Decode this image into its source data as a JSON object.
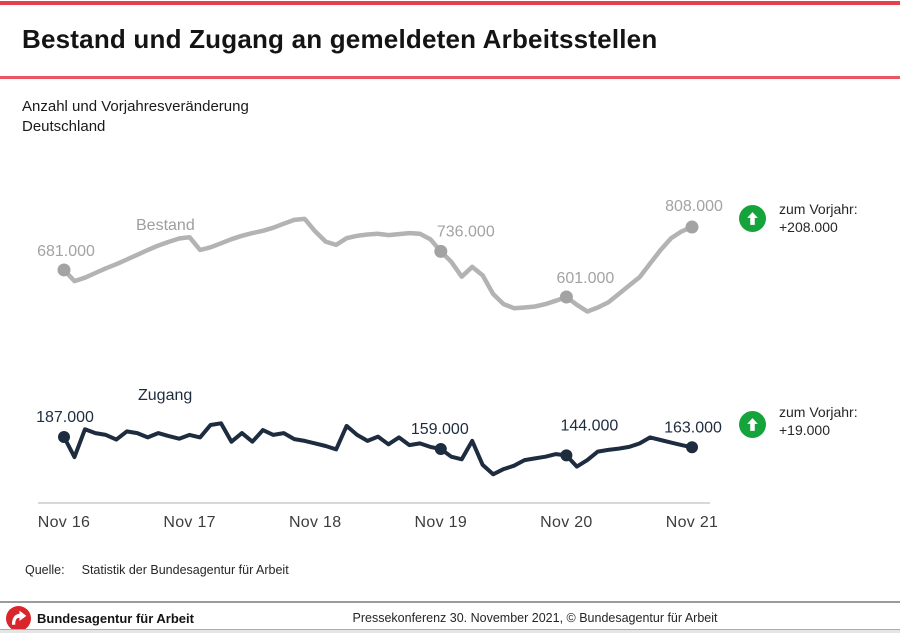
{
  "header": {
    "title": "Bestand und Zugang an gemeldeten Arbeitsstellen"
  },
  "subtitle": {
    "line1": "Anzahl und Vorjahresveränderung",
    "line2": "Deutschland"
  },
  "chart_data": {
    "type": "line",
    "title": "Bestand und Zugang an gemeldeten Arbeitsstellen",
    "x_unit": "Monat (monatlich, Nov 2016 bis Nov 2021)",
    "value_unit": "Stellen in Tausend (Beschriftung im Format 681.000)",
    "grid": false,
    "legend_position": "inline-labels",
    "x_ticks": [
      {
        "index": 0,
        "label": "Nov 16"
      },
      {
        "index": 12,
        "label": "Nov 17"
      },
      {
        "index": 24,
        "label": "Nov 18"
      },
      {
        "index": 36,
        "label": "Nov 19"
      },
      {
        "index": 48,
        "label": "Nov 20"
      },
      {
        "index": 60,
        "label": "Nov 21"
      }
    ],
    "series": [
      {
        "name": "Bestand",
        "color": "#b3b3b3",
        "values": [
          681,
          648,
          658,
          672,
          686,
          698,
          712,
          726,
          740,
          753,
          764,
          774,
          778,
          740,
          748,
          760,
          772,
          782,
          790,
          797,
          806,
          818,
          829,
          832,
          795,
          765,
          755,
          775,
          782,
          786,
          788,
          784,
          787,
          790,
          788,
          772,
          736,
          705,
          661,
          690,
          665,
          610,
          580,
          568,
          570,
          573,
          580,
          590,
          601,
          578,
          558,
          570,
          585,
          610,
          635,
          660,
          700,
          740,
          775,
          795,
          808
        ],
        "labeled_points": [
          {
            "index": 0,
            "text": "681.000"
          },
          {
            "index": 36,
            "text": "736.000"
          },
          {
            "index": 48,
            "text": "601.000"
          },
          {
            "index": 60,
            "text": "808.000"
          }
        ]
      },
      {
        "name": "Zugang",
        "color": "#1e2c3f",
        "values": [
          187,
          140,
          205,
          196,
          192,
          181,
          200,
          196,
          186,
          196,
          189,
          183,
          192,
          186,
          215,
          219,
          176,
          196,
          176,
          203,
          192,
          196,
          182,
          178,
          172,
          166,
          158,
          213,
          192,
          178,
          188,
          170,
          186,
          168,
          172,
          164,
          159,
          141,
          135,
          178,
          122,
          100,
          112,
          120,
          133,
          137,
          141,
          147,
          144,
          118,
          133,
          153,
          157,
          160,
          164,
          172,
          186,
          180,
          174,
          168,
          163
        ],
        "labeled_points": [
          {
            "index": 0,
            "text": "187.000"
          },
          {
            "index": 36,
            "text": "159.000"
          },
          {
            "index": 48,
            "text": "144.000"
          },
          {
            "index": 60,
            "text": "163.000"
          }
        ]
      }
    ]
  },
  "annotations": [
    {
      "series": "Bestand",
      "label": "zum Vorjahr:",
      "value": "+208.000",
      "direction": "up",
      "color": "#15a43c"
    },
    {
      "series": "Zugang",
      "label": "zum Vorjahr:",
      "value": "+19.000",
      "direction": "up",
      "color": "#15a43c"
    }
  ],
  "source": {
    "prefix": "Quelle:",
    "text": "Statistik der Bundesagentur für Arbeit"
  },
  "footer": {
    "org": "Bundesagentur für Arbeit",
    "note": "Pressekonferenz 30. November 2021, © Bundesagentur für Arbeit"
  },
  "colors": {
    "accent_red": "#e6404c",
    "divider_red": "#ec5660",
    "bestand_line": "#b3b3b3",
    "zugang_line": "#1e2c3f",
    "arrow_green": "#15a43c",
    "axis_gray": "#d8d8d8",
    "logo_red": "#d9252c"
  }
}
